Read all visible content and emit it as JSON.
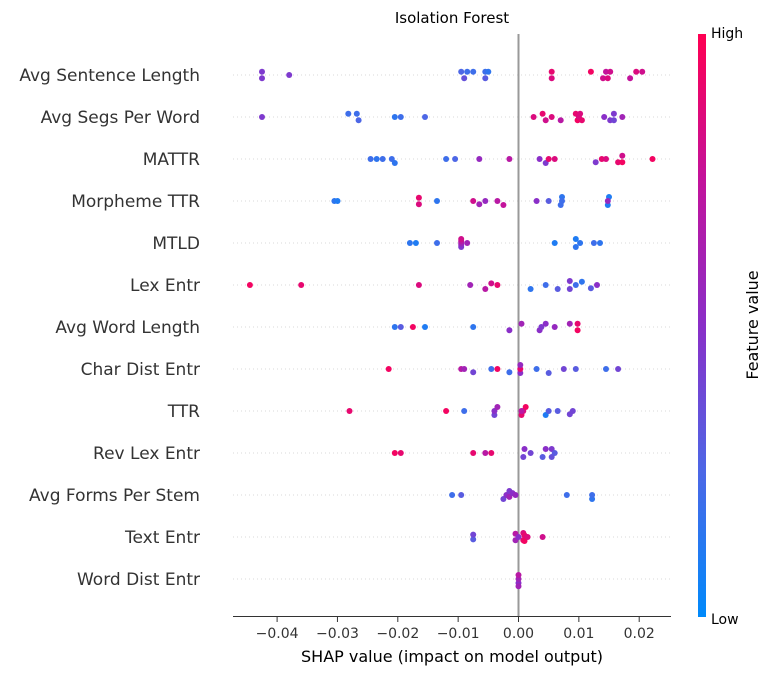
{
  "chart_data": {
    "type": "scatter",
    "title": "Isolation Forest",
    "xlabel": "SHAP value (impact on model output)",
    "xlim": [
      -0.048,
      0.026
    ],
    "x_ticks": [
      -0.04,
      -0.03,
      -0.02,
      -0.01,
      0.0,
      0.01,
      0.02
    ],
    "x_tick_labels": [
      "−0.04",
      "−0.03",
      "−0.02",
      "−0.01",
      "0.00",
      "0.01",
      "0.02"
    ],
    "features": [
      "Avg Sentence Length",
      "Avg Segs Per Word",
      "MATTR",
      "Morpheme TTR",
      "MTLD",
      "Lex Entr",
      "Avg Word Length",
      "Char Dist Entr",
      "TTR",
      "Rev Lex Entr",
      "Avg Forms Per Stem",
      "Text Entr",
      "Word Dist Entr"
    ],
    "colorbar": {
      "label": "Feature value",
      "high": "High",
      "low": "Low",
      "color_low": "#008afb",
      "color_high": "#ff0052"
    },
    "points": [
      [
        [
          -0.0425,
          0.45,
          0.2
        ],
        [
          -0.0425,
          0.45,
          -0.2
        ],
        [
          -0.038,
          0.45,
          0
        ],
        [
          -0.009,
          0.35,
          0.2
        ],
        [
          -0.0095,
          0.25,
          -0.2
        ],
        [
          -0.0085,
          0.2,
          -0.2
        ],
        [
          -0.0075,
          0.2,
          -0.2
        ],
        [
          -0.0055,
          0.3,
          0.2
        ],
        [
          -0.0055,
          0.2,
          -0.2
        ],
        [
          -0.005,
          0.15,
          -0.2
        ],
        [
          0.0055,
          0.85,
          0.2
        ],
        [
          0.0055,
          0.9,
          -0.2
        ],
        [
          0.012,
          0.95,
          -0.2
        ],
        [
          0.014,
          0.8,
          0.2
        ],
        [
          0.0148,
          0.85,
          0.2
        ],
        [
          0.0145,
          0.75,
          -0.2
        ],
        [
          0.0152,
          0.8,
          -0.2
        ],
        [
          0.0185,
          0.75,
          0.2
        ],
        [
          0.0195,
          0.85,
          -0.2
        ],
        [
          0.0205,
          0.8,
          -0.2
        ]
      ],
      [
        [
          -0.0425,
          0.45,
          0
        ],
        [
          -0.0265,
          0.25,
          0.2
        ],
        [
          -0.0268,
          0.2,
          -0.2
        ],
        [
          -0.0282,
          0.2,
          -0.2
        ],
        [
          -0.0205,
          0.15,
          0
        ],
        [
          -0.0195,
          0.2,
          0
        ],
        [
          -0.0155,
          0.25,
          0
        ],
        [
          0.0025,
          0.85,
          0
        ],
        [
          0.0045,
          0.8,
          0.2
        ],
        [
          0.004,
          0.9,
          -0.2
        ],
        [
          0.0055,
          0.85,
          0
        ],
        [
          0.007,
          0.7,
          0.2
        ],
        [
          0.0095,
          0.9,
          -0.2
        ],
        [
          0.0098,
          0.95,
          0.2
        ],
        [
          0.01,
          0.85,
          0
        ],
        [
          0.0105,
          0.9,
          0.2
        ],
        [
          0.0102,
          0.85,
          -0.2
        ],
        [
          0.0142,
          0.5,
          0
        ],
        [
          0.0152,
          0.45,
          0.2
        ],
        [
          0.0158,
          0.4,
          0.2
        ],
        [
          0.0158,
          0.45,
          -0.2
        ],
        [
          0.0172,
          0.6,
          0
        ]
      ],
      [
        [
          -0.0245,
          0.2,
          0
        ],
        [
          -0.0235,
          0.15,
          0
        ],
        [
          -0.0225,
          0.2,
          0
        ],
        [
          -0.021,
          0.2,
          0
        ],
        [
          -0.0205,
          0.15,
          0.25
        ],
        [
          -0.012,
          0.2,
          0
        ],
        [
          -0.0105,
          0.25,
          0
        ],
        [
          -0.0065,
          0.55,
          0
        ],
        [
          -0.0015,
          0.7,
          0
        ],
        [
          0.0035,
          0.5,
          0
        ],
        [
          0.0045,
          0.45,
          0.25
        ],
        [
          0.005,
          0.9,
          0
        ],
        [
          0.006,
          0.85,
          0
        ],
        [
          0.0128,
          0.45,
          0.2
        ],
        [
          0.0138,
          0.9,
          0
        ],
        [
          0.0145,
          0.85,
          0
        ],
        [
          0.0165,
          0.9,
          0.2
        ],
        [
          0.0172,
          0.95,
          0.2
        ],
        [
          0.0172,
          0.8,
          -0.2
        ],
        [
          0.0222,
          0.95,
          0
        ]
      ],
      [
        [
          -0.0305,
          0.15,
          0
        ],
        [
          -0.03,
          0.1,
          0
        ],
        [
          -0.0165,
          0.85,
          0.2
        ],
        [
          -0.0165,
          0.9,
          -0.2
        ],
        [
          -0.0135,
          0.15,
          0
        ],
        [
          -0.0075,
          0.8,
          0
        ],
        [
          -0.0065,
          0.6,
          0.2
        ],
        [
          -0.0055,
          0.55,
          0
        ],
        [
          -0.0035,
          0.7,
          0
        ],
        [
          -0.0025,
          0.75,
          0.25
        ],
        [
          0.003,
          0.5,
          0
        ],
        [
          0.005,
          0.3,
          0
        ],
        [
          0.007,
          0.2,
          0.25
        ],
        [
          0.0072,
          0.15,
          -0.25
        ],
        [
          0.0072,
          0.2,
          0
        ],
        [
          0.0148,
          0.1,
          0.25
        ],
        [
          0.015,
          0.1,
          -0.25
        ],
        [
          0.0148,
          0.55,
          0
        ]
      ],
      [
        [
          -0.018,
          0.15,
          0
        ],
        [
          -0.017,
          0.1,
          0
        ],
        [
          -0.0135,
          0.2,
          0
        ],
        [
          -0.0095,
          0.45,
          0.25
        ],
        [
          -0.0095,
          0.5,
          0.12
        ],
        [
          -0.0095,
          0.6,
          0
        ],
        [
          -0.0095,
          0.7,
          -0.12
        ],
        [
          -0.0095,
          0.8,
          -0.25
        ],
        [
          -0.0085,
          0.6,
          0
        ],
        [
          0.006,
          0.1,
          0
        ],
        [
          0.0095,
          0.15,
          0.25
        ],
        [
          0.0095,
          0.1,
          -0.25
        ],
        [
          0.0102,
          0.15,
          0
        ],
        [
          0.0125,
          0.2,
          0
        ],
        [
          0.0135,
          0.15,
          0
        ]
      ],
      [
        [
          -0.0445,
          0.95,
          0
        ],
        [
          -0.036,
          0.9,
          0
        ],
        [
          -0.0165,
          0.85,
          0
        ],
        [
          -0.008,
          0.6,
          0
        ],
        [
          -0.0055,
          0.7,
          0.25
        ],
        [
          -0.0045,
          0.8,
          -0.1
        ],
        [
          -0.0035,
          0.9,
          0
        ],
        [
          0.002,
          0.15,
          0.25
        ],
        [
          0.0045,
          0.2,
          0
        ],
        [
          0.0065,
          0.3,
          0.25
        ],
        [
          0.0085,
          0.4,
          0.25
        ],
        [
          0.0085,
          0.45,
          -0.25
        ],
        [
          0.0095,
          0.2,
          0
        ],
        [
          0.0105,
          0.15,
          -0.2
        ],
        [
          0.012,
          0.3,
          0.2
        ],
        [
          0.013,
          0.5,
          0
        ]
      ],
      [
        [
          -0.0205,
          0.15,
          0
        ],
        [
          -0.0195,
          0.3,
          0
        ],
        [
          -0.0175,
          0.95,
          0
        ],
        [
          -0.0155,
          0.1,
          0
        ],
        [
          -0.0075,
          0.15,
          0
        ],
        [
          -0.0015,
          0.5,
          0.2
        ],
        [
          0.0005,
          0.6,
          -0.2
        ],
        [
          0.0035,
          0.5,
          0.2
        ],
        [
          0.0038,
          0.45,
          0
        ],
        [
          0.0045,
          0.5,
          -0.2
        ],
        [
          0.006,
          0.55,
          0
        ],
        [
          0.0085,
          0.6,
          -0.2
        ],
        [
          0.0098,
          0.95,
          0.2
        ],
        [
          0.0098,
          0.9,
          -0.2
        ]
      ],
      [
        [
          -0.0215,
          0.95,
          0
        ],
        [
          -0.0095,
          0.7,
          0
        ],
        [
          -0.009,
          0.6,
          0
        ],
        [
          -0.0075,
          0.4,
          0.2
        ],
        [
          -0.0045,
          0.2,
          0
        ],
        [
          -0.0035,
          0.95,
          0
        ],
        [
          -0.0015,
          0.2,
          0.2
        ],
        [
          0.0003,
          0.5,
          0.25
        ],
        [
          0.0003,
          0.9,
          0
        ],
        [
          0.0003,
          0.55,
          -0.25
        ],
        [
          0.003,
          0.2,
          0
        ],
        [
          0.005,
          0.3,
          0.25
        ],
        [
          0.0075,
          0.4,
          0
        ],
        [
          0.0095,
          0.3,
          0
        ],
        [
          0.0145,
          0.2,
          0
        ],
        [
          0.0165,
          0.4,
          0
        ]
      ],
      [
        [
          -0.028,
          0.9,
          0
        ],
        [
          -0.012,
          0.95,
          0
        ],
        [
          -0.009,
          0.2,
          0
        ],
        [
          -0.004,
          0.4,
          0.25
        ],
        [
          -0.004,
          0.5,
          0
        ],
        [
          -0.0035,
          0.6,
          -0.25
        ],
        [
          0.0005,
          0.9,
          0.25
        ],
        [
          0.0008,
          0.85,
          0
        ],
        [
          0.0012,
          0.95,
          -0.25
        ],
        [
          0.0005,
          0.7,
          0
        ],
        [
          0.0045,
          0.1,
          0.25
        ],
        [
          0.005,
          0.3,
          0
        ],
        [
          0.0065,
          0.3,
          0
        ],
        [
          0.0085,
          0.4,
          0.2
        ],
        [
          0.009,
          0.4,
          0
        ]
      ],
      [
        [
          -0.0205,
          0.95,
          0
        ],
        [
          -0.0195,
          0.9,
          0
        ],
        [
          -0.0075,
          0.9,
          0
        ],
        [
          -0.0055,
          0.7,
          0
        ],
        [
          -0.0045,
          0.9,
          0
        ],
        [
          0.0008,
          0.4,
          0.25
        ],
        [
          0.001,
          0.5,
          -0.25
        ],
        [
          0.002,
          0.4,
          0
        ],
        [
          0.004,
          0.3,
          0.25
        ],
        [
          0.0045,
          0.5,
          -0.25
        ],
        [
          0.0055,
          0.35,
          0.25
        ],
        [
          0.0055,
          0.45,
          -0.25
        ],
        [
          0.006,
          0.3,
          0
        ]
      ],
      [
        [
          -0.011,
          0.2,
          0
        ],
        [
          -0.0095,
          0.3,
          0
        ],
        [
          -0.0025,
          0.4,
          0.25
        ],
        [
          -0.002,
          0.5,
          0
        ],
        [
          -0.0015,
          0.45,
          -0.25
        ],
        [
          -0.0015,
          0.6,
          0.12
        ],
        [
          -0.001,
          0.5,
          -0.12
        ],
        [
          -0.0005,
          0.55,
          0
        ],
        [
          0.008,
          0.2,
          0
        ],
        [
          0.0122,
          0.15,
          0.25
        ],
        [
          0.0122,
          0.2,
          0
        ]
      ],
      [
        [
          -0.0075,
          0.3,
          0.15
        ],
        [
          -0.0075,
          0.4,
          -0.15
        ],
        [
          -0.0005,
          0.6,
          0.2
        ],
        [
          -0.0005,
          0.7,
          -0.2
        ],
        [
          0.0,
          0.5,
          0
        ],
        [
          0.0008,
          0.9,
          0.2
        ],
        [
          0.0008,
          0.85,
          -0.25
        ],
        [
          0.001,
          0.95,
          0.25
        ],
        [
          0.001,
          0.9,
          -0.1
        ],
        [
          0.0015,
          0.85,
          0
        ],
        [
          0.004,
          0.8,
          0
        ]
      ],
      [
        [
          0.0,
          0.5,
          0.25
        ],
        [
          0.0,
          0.6,
          0
        ],
        [
          0.0,
          0.7,
          -0.25
        ],
        [
          0.0,
          0.6,
          0.45
        ]
      ]
    ]
  }
}
